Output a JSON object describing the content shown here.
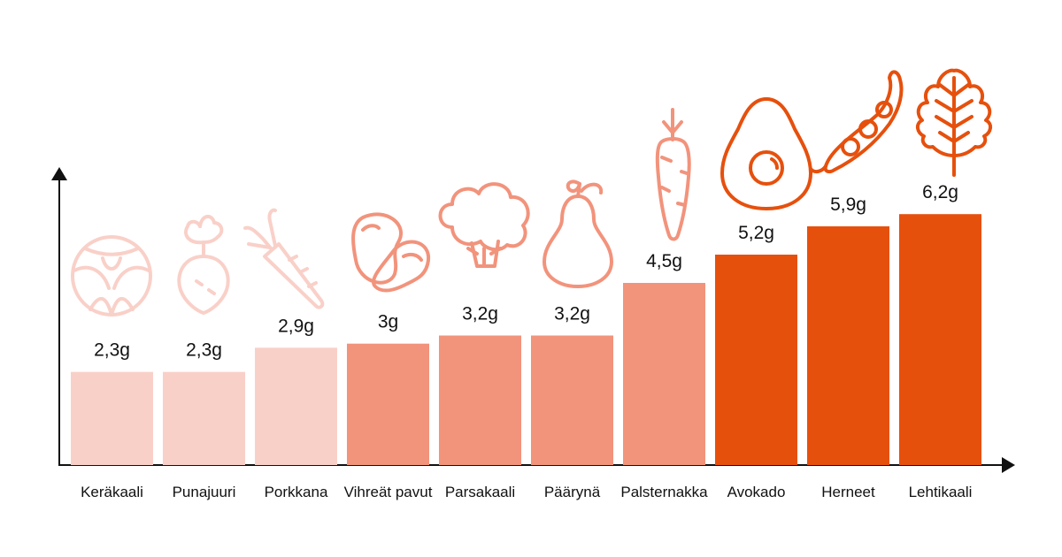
{
  "chart_data": {
    "type": "bar",
    "title": "",
    "xlabel": "",
    "ylabel": "",
    "categories": [
      "Keräkaali",
      "Punajuuri",
      "Porkkana",
      "Vihreät pavut",
      "Parsakaali",
      "Päärynä",
      "Palsternakka",
      "Avokado",
      "Herneet",
      "Lehtikaali"
    ],
    "values": [
      2.3,
      2.3,
      2.9,
      3.0,
      3.2,
      3.2,
      4.5,
      5.2,
      5.9,
      6.2
    ],
    "value_labels": [
      "2,3g",
      "2,3g",
      "2,9g",
      "3g",
      "3,2g",
      "3,2g",
      "4,5g",
      "5,2g",
      "5,9g",
      "6,2g"
    ],
    "ylim": [
      0,
      7.8
    ],
    "grid": false,
    "legend": "none",
    "bar_colors": [
      "#f9d0c8",
      "#f9d0c8",
      "#f9d0c8",
      "#f2937c",
      "#f2937c",
      "#f2937c",
      "#f2937c",
      "#e6500d",
      "#e6500d",
      "#e6500d"
    ],
    "icons": [
      "cabbage-icon",
      "beet-icon",
      "carrot-icon",
      "beans-icon",
      "broccoli-icon",
      "pear-icon",
      "parsnip-icon",
      "avocado-icon",
      "peas-icon",
      "kale-icon"
    ]
  }
}
